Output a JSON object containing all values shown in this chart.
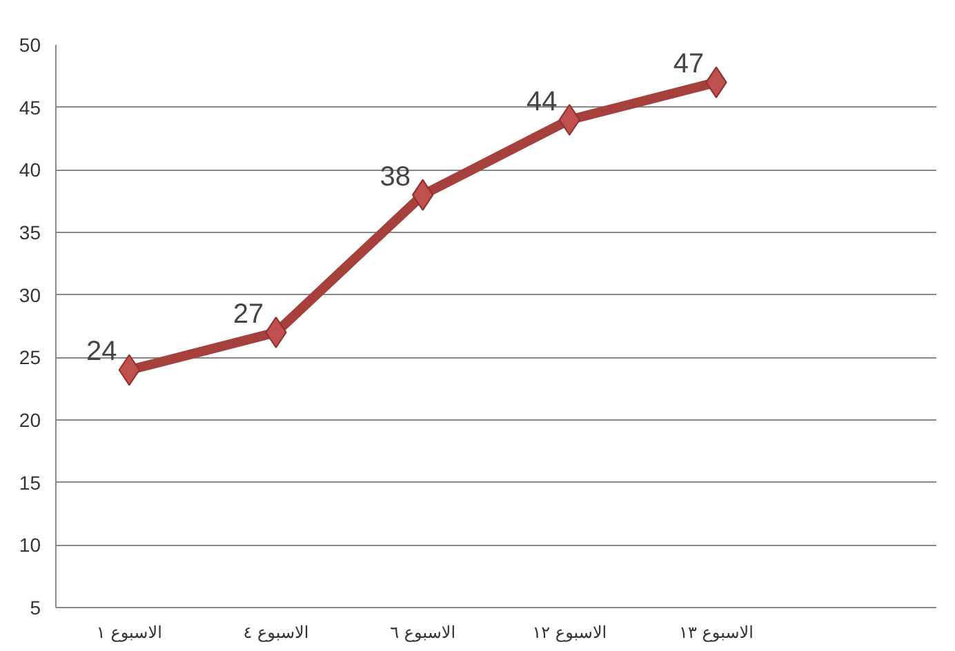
{
  "chart_data": {
    "type": "line",
    "categories": [
      "الاسبوع ١",
      "الاسبوع ٤",
      "الاسبوع ٦",
      "الاسبوع ١٢",
      "الاسبوع ١٣"
    ],
    "series": [
      {
        "color": "#a5403d",
        "values": [
          24,
          27,
          38,
          44,
          47
        ]
      }
    ],
    "ylim": [
      5,
      50
    ],
    "yticks": [
      5,
      10,
      15,
      20,
      25,
      30,
      35,
      40,
      45,
      50
    ],
    "grid": "y",
    "marker": "diamond",
    "line_style": "solid",
    "data_labels": true
  }
}
